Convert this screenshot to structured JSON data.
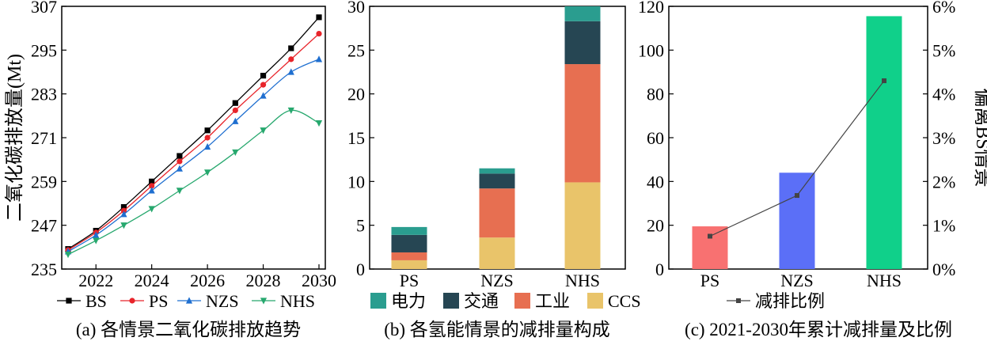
{
  "chart_data": [
    {
      "type": "line",
      "caption": "(a) 各情景二氧化碳排放趋势",
      "ylabel": "二氧化碳排放量(Mt)",
      "xlabel": "",
      "xlim": [
        2021,
        2030
      ],
      "ylim": [
        235,
        307
      ],
      "xticks": [
        2022,
        2024,
        2026,
        2028,
        2030
      ],
      "yticks": [
        235,
        247,
        259,
        271,
        283,
        295,
        307
      ],
      "x": [
        2021,
        2022,
        2023,
        2024,
        2025,
        2026,
        2027,
        2028,
        2029,
        2030
      ],
      "series": [
        {
          "name": "BS",
          "color": "#000000",
          "marker": "square",
          "values": [
            240.5,
            245.5,
            252.0,
            259.0,
            266.0,
            273.0,
            280.5,
            288.0,
            295.5,
            304.0
          ]
        },
        {
          "name": "PS",
          "color": "#e8242a",
          "marker": "circle",
          "values": [
            240.2,
            245.0,
            251.0,
            257.8,
            264.5,
            271.0,
            278.5,
            285.5,
            292.5,
            299.5
          ]
        },
        {
          "name": "NZS",
          "color": "#1f6fd0",
          "marker": "triangle-up",
          "values": [
            239.8,
            244.3,
            250.0,
            256.5,
            262.5,
            268.5,
            275.5,
            282.5,
            289.0,
            292.5
          ]
        },
        {
          "name": "NHS",
          "color": "#27a86e",
          "marker": "triangle-down",
          "values": [
            239.0,
            242.8,
            247.0,
            251.5,
            256.5,
            261.5,
            267.0,
            273.0,
            278.5,
            275.0
          ]
        }
      ],
      "legend": "bottom"
    },
    {
      "type": "bar",
      "stacked": true,
      "caption": "(b) 各氢能情景的减排量构成",
      "ylabel": "",
      "xlabel": "",
      "ylim": [
        0,
        30
      ],
      "yticks": [
        0,
        5,
        10,
        15,
        20,
        25,
        30
      ],
      "categories": [
        "PS",
        "NZS",
        "NHS"
      ],
      "series": [
        {
          "name": "CCS",
          "color": "#e9c46a",
          "values": [
            1.0,
            3.6,
            9.9
          ]
        },
        {
          "name": "工业",
          "color": "#e76f51",
          "values": [
            0.9,
            5.6,
            13.5
          ]
        },
        {
          "name": "交通",
          "color": "#264653",
          "values": [
            2.0,
            1.7,
            4.9
          ]
        },
        {
          "name": "电力",
          "color": "#2a9d8f",
          "values": [
            0.9,
            0.6,
            1.7
          ]
        }
      ],
      "legend_order": [
        "电力",
        "交通",
        "工业",
        "CCS"
      ],
      "legend": "bottom"
    },
    {
      "type": "bar",
      "caption": "(c) 2021-2030年累计减排量及比例",
      "ylabel": "",
      "y2label": "偏离BS情景",
      "ylim": [
        0,
        120
      ],
      "yticks": [
        0,
        20,
        40,
        60,
        80,
        100,
        120
      ],
      "y2lim": [
        0,
        6
      ],
      "y2ticks": [
        "0%",
        "1%",
        "2%",
        "3%",
        "4%",
        "5%",
        "6%"
      ],
      "categories": [
        "PS",
        "NZS",
        "NHS"
      ],
      "bar_colors": [
        "#f87171",
        "#5b6ff7",
        "#10d08a"
      ],
      "values": [
        19.5,
        44.0,
        115.5
      ],
      "line_series": {
        "name": "减排比例",
        "color": "#444444",
        "unit": "%",
        "values": [
          0.75,
          1.68,
          4.3
        ]
      },
      "legend": "bottom"
    }
  ]
}
